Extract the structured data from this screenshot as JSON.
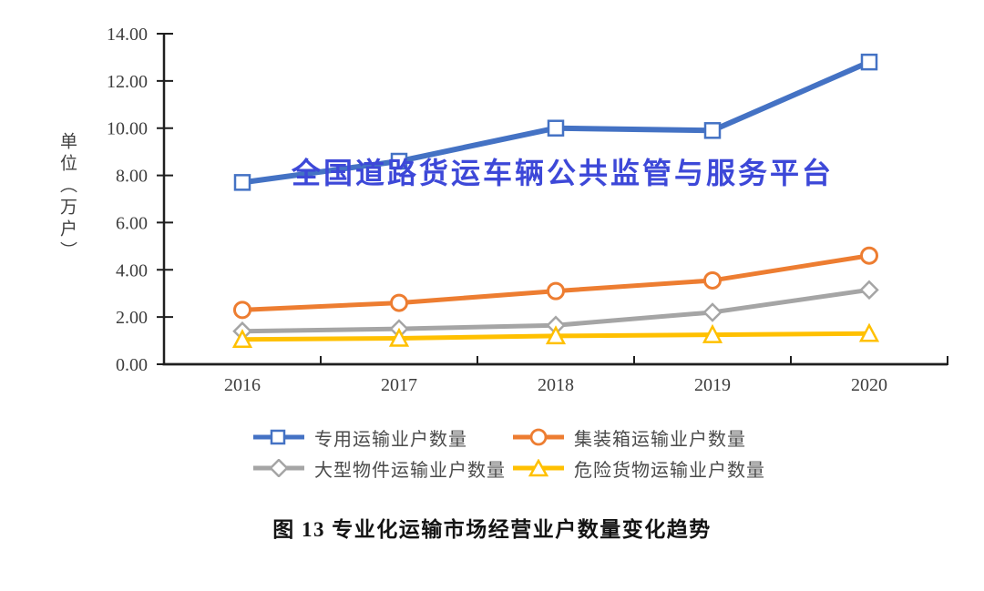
{
  "watermark": {
    "text": "全国道路货运车辆公共监管与服务平台",
    "color": "#3d48d8"
  },
  "caption": "图 13 专业化运输市场经营业户数量变化趋势",
  "chart_data": {
    "type": "line",
    "title": "",
    "xlabel": "",
    "ylabel": "单位（万户）",
    "categories": [
      "2016",
      "2017",
      "2018",
      "2019",
      "2020"
    ],
    "ylim": [
      0,
      14
    ],
    "ytick_step": 2,
    "ytick_labels": [
      "0.00",
      "2.00",
      "4.00",
      "6.00",
      "8.00",
      "10.00",
      "12.00",
      "14.00"
    ],
    "grid": false,
    "legend_position": "bottom",
    "axis_color": "#1f1f1f",
    "tick_label_color": "#3d3d3d",
    "series": [
      {
        "name": "专用运输业户数量",
        "marker": "square",
        "color": "#4472c4",
        "values": [
          7.7,
          8.6,
          10.0,
          9.9,
          12.8
        ]
      },
      {
        "name": "集装箱运输业户数量",
        "marker": "circle",
        "color": "#ed7d31",
        "values": [
          2.3,
          2.6,
          3.1,
          3.55,
          4.6
        ]
      },
      {
        "name": "大型物件运输业户数量",
        "marker": "diamond",
        "color": "#a5a5a5",
        "values": [
          1.4,
          1.5,
          1.65,
          2.2,
          3.15
        ]
      },
      {
        "name": "危险货物运输业户数量",
        "marker": "triangle",
        "color": "#ffc000",
        "values": [
          1.05,
          1.1,
          1.2,
          1.25,
          1.3
        ]
      }
    ]
  }
}
